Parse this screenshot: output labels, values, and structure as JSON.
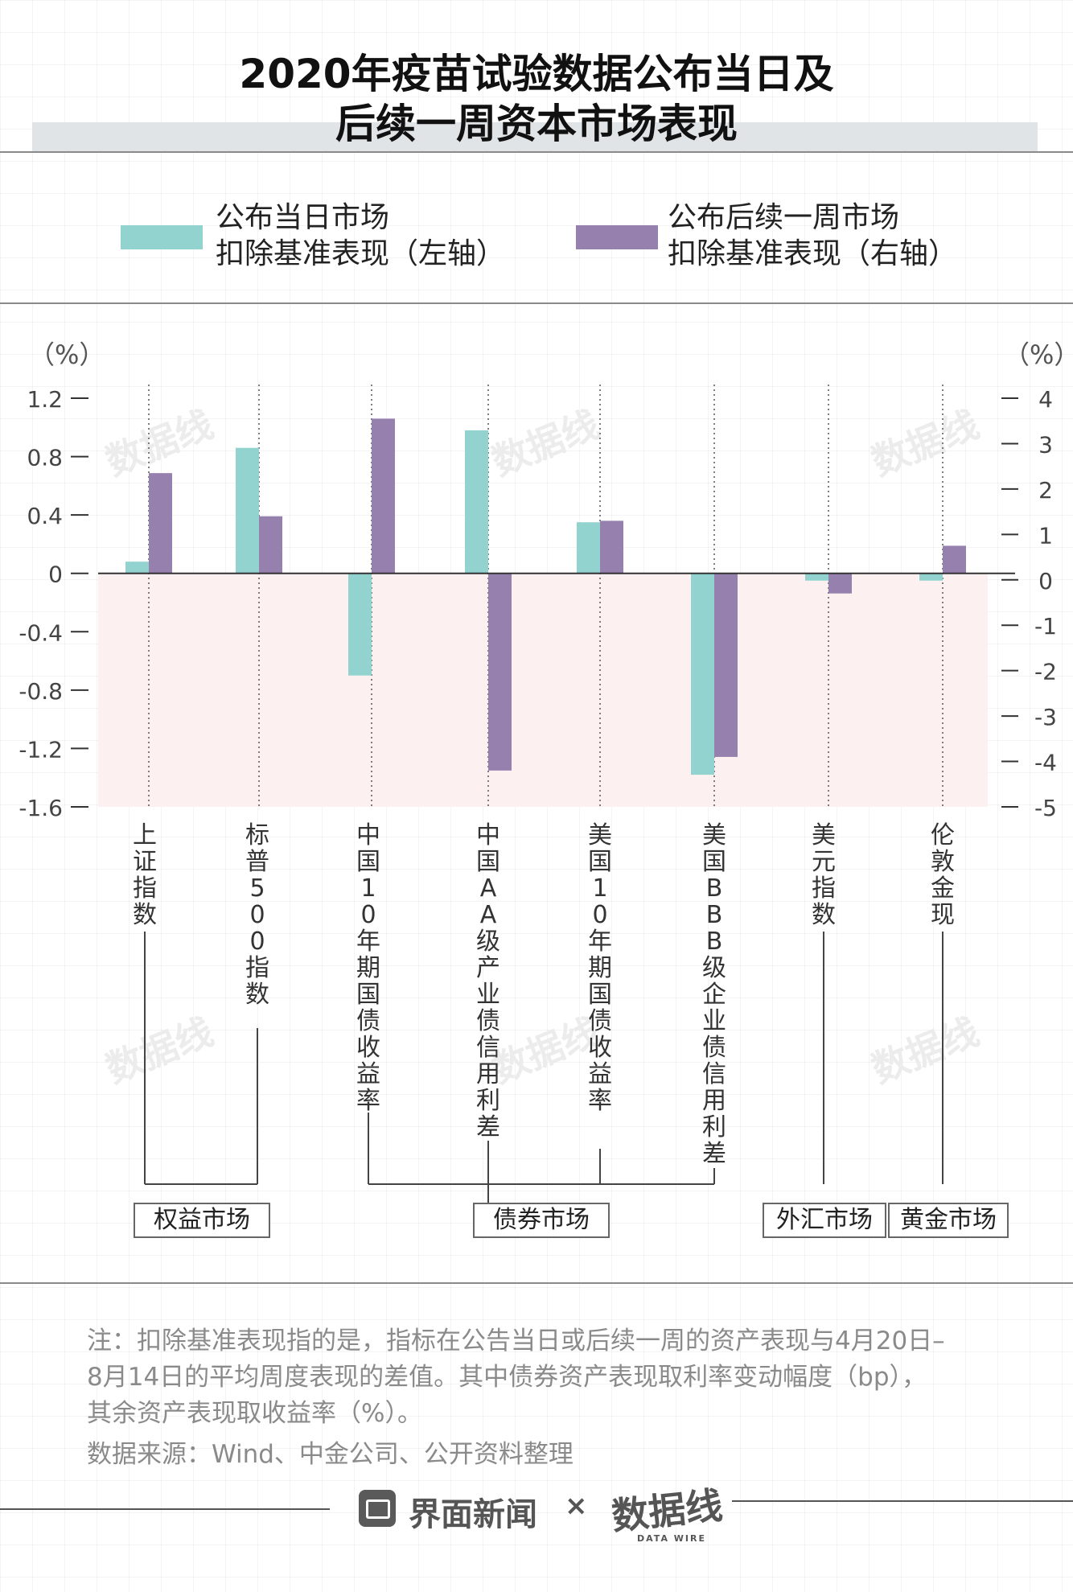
{
  "title": {
    "line1": "2020年疫苗试验数据公布当日及",
    "line2": "后续一周资本市场表现"
  },
  "legend": [
    {
      "line1": "公布当日市场",
      "line2": "扣除基准表现（左轴）",
      "color": "#92d3cf"
    },
    {
      "line1": "公布后续一周市场",
      "line2": "扣除基准表现（右轴）",
      "color": "#9580ae"
    }
  ],
  "axis": {
    "left_unit": "（%）",
    "right_unit": "（%）"
  },
  "chart_data": {
    "type": "bar",
    "categories": [
      "上证指数",
      "标普500指数",
      "中国10年期国债收益率",
      "中国AA级产业债信用利差",
      "美国10年期国债收益率",
      "美国BBB级企业债信用利差",
      "美元指数",
      "伦敦金现"
    ],
    "series": [
      {
        "name": "公布当日市场扣除基准表现（左轴）",
        "axis": "left",
        "values": [
          0.08,
          0.86,
          -0.7,
          0.98,
          0.35,
          -1.38,
          -0.05,
          -0.05
        ]
      },
      {
        "name": "公布后续一周市场扣除基准表现（右轴）",
        "axis": "right",
        "values": [
          2.35,
          1.4,
          3.55,
          -4.2,
          1.3,
          -3.9,
          -0.3,
          0.75
        ]
      }
    ],
    "left_axis": {
      "ylim": [
        -1.6,
        1.2
      ],
      "ticks": [
        "1.2",
        "0.8",
        "0.4",
        "0",
        "-0.4",
        "-0.8",
        "-1.2",
        "-1.6"
      ]
    },
    "right_axis": {
      "ylim": [
        -5,
        4
      ],
      "ticks": [
        "4",
        "3",
        "2",
        "1",
        "0",
        "-1",
        "-2",
        "-3",
        "-4",
        "-5"
      ]
    },
    "negative_region_color": "#fdf0f0"
  },
  "groups": [
    {
      "label": "权益市场"
    },
    {
      "label": "债券市场"
    },
    {
      "label": "外汇市场"
    },
    {
      "label": "黄金市场"
    }
  ],
  "notes": {
    "line1": "注：扣除基准表现指的是，指标在公告当日或后续一周的资产表现与4月20日–",
    "line2": "8月14日的平均周度表现的差值。其中债券资产表现取利率变动幅度（bp），",
    "line3": "其余资产表现取收益率（%）。",
    "source": "数据来源：Wind、中金公司、公开资料整理"
  },
  "footer": {
    "brand": "界面新闻",
    "times": "×",
    "partner": "数据线",
    "partner_sub": "DATA WIRE"
  },
  "watermark": "数据线"
}
